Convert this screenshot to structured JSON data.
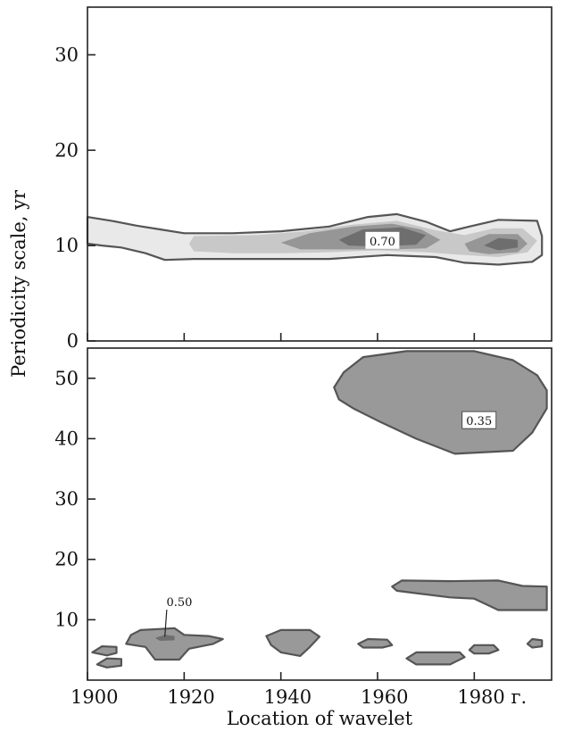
{
  "chart_data": {
    "type": "heatmap",
    "y_axis_title": "Periodicity scale, yr",
    "x_axis_title": "Location of wavelet",
    "x_ticks": [
      1900,
      1920,
      1940,
      1960,
      1980
    ],
    "x_tick_labels": [
      "1900",
      "1920",
      "1940",
      "1960",
      "1980 г."
    ],
    "xlim": [
      1900,
      1996
    ],
    "colors": {
      "outline": "#555555",
      "level_light": "#e9e9e9",
      "level_medium": "#c8c8c8",
      "level_dark": "#969696",
      "level_darkest": "#6e6e6e",
      "patch_fill": "#999999"
    },
    "panels": [
      {
        "name": "top",
        "ylim": [
          0,
          35
        ],
        "y_ticks": [
          0,
          10,
          20,
          30
        ],
        "y_tick_labels": [
          "0",
          "10",
          "20",
          "30"
        ],
        "annotations": [
          {
            "text": "0.70",
            "x": 1961,
            "y": 10.5
          }
        ],
        "contours": [
          {
            "level": "outer",
            "fill": "level_light",
            "stroke": true,
            "points": [
              [
                1900,
                13.0
              ],
              [
                1905,
                12.6
              ],
              [
                1910,
                12.1
              ],
              [
                1915,
                11.7
              ],
              [
                1920,
                11.3
              ],
              [
                1930,
                11.3
              ],
              [
                1940,
                11.5
              ],
              [
                1950,
                12.0
              ],
              [
                1958,
                13.0
              ],
              [
                1964,
                13.3
              ],
              [
                1970,
                12.5
              ],
              [
                1975,
                11.5
              ],
              [
                1979,
                12.0
              ],
              [
                1985,
                12.7
              ],
              [
                1993,
                12.6
              ],
              [
                1994,
                11.0
              ],
              [
                1994,
                9.0
              ],
              [
                1992,
                8.3
              ],
              [
                1985,
                8.0
              ],
              [
                1978,
                8.2
              ],
              [
                1972,
                8.8
              ],
              [
                1962,
                9.0
              ],
              [
                1950,
                8.6
              ],
              [
                1940,
                8.6
              ],
              [
                1930,
                8.6
              ],
              [
                1922,
                8.6
              ],
              [
                1916,
                8.5
              ],
              [
                1912,
                9.2
              ],
              [
                1907,
                9.8
              ],
              [
                1903,
                10.0
              ],
              [
                1900,
                10.2
              ]
            ]
          },
          {
            "level": "light",
            "fill": "level_medium",
            "stroke": false,
            "points": [
              [
                1922,
                11.0
              ],
              [
                1935,
                11.1
              ],
              [
                1945,
                11.5
              ],
              [
                1955,
                12.2
              ],
              [
                1964,
                12.6
              ],
              [
                1972,
                11.6
              ],
              [
                1978,
                11.1
              ],
              [
                1984,
                11.8
              ],
              [
                1990,
                11.8
              ],
              [
                1993,
                10.5
              ],
              [
                1991,
                9.3
              ],
              [
                1985,
                8.8
              ],
              [
                1978,
                9.0
              ],
              [
                1970,
                9.3
              ],
              [
                1960,
                9.5
              ],
              [
                1950,
                9.3
              ],
              [
                1940,
                9.2
              ],
              [
                1930,
                9.2
              ],
              [
                1922,
                9.4
              ],
              [
                1921,
                10.2
              ]
            ]
          },
          {
            "level": "medium",
            "fill": "level_dark",
            "stroke": false,
            "points": [
              [
                1940,
                10.3
              ],
              [
                1946,
                11.3
              ],
              [
                1955,
                12.0
              ],
              [
                1963,
                12.3
              ],
              [
                1969,
                11.7
              ],
              [
                1973,
                10.6
              ],
              [
                1970,
                9.7
              ],
              [
                1963,
                9.6
              ],
              [
                1953,
                9.6
              ],
              [
                1944,
                9.6
              ]
            ]
          },
          {
            "level": "medium",
            "fill": "level_dark",
            "stroke": false,
            "points": [
              [
                1978,
                10.2
              ],
              [
                1983,
                11.2
              ],
              [
                1989,
                11.2
              ],
              [
                1991,
                10.2
              ],
              [
                1989,
                9.3
              ],
              [
                1983,
                9.1
              ],
              [
                1979,
                9.4
              ]
            ]
          },
          {
            "level": "dark",
            "fill": "level_darkest",
            "stroke": false,
            "points": [
              [
                1952,
                10.6
              ],
              [
                1957,
                11.7
              ],
              [
                1965,
                11.9
              ],
              [
                1970,
                11.1
              ],
              [
                1968,
                10.1
              ],
              [
                1960,
                9.9
              ],
              [
                1954,
                10.0
              ]
            ]
          },
          {
            "level": "dark",
            "fill": "level_darkest",
            "stroke": false,
            "points": [
              [
                1982,
                10.0
              ],
              [
                1985,
                10.8
              ],
              [
                1989,
                10.6
              ],
              [
                1989,
                9.8
              ],
              [
                1985,
                9.5
              ]
            ]
          }
        ]
      },
      {
        "name": "bottom",
        "ylim": [
          0,
          55
        ],
        "y_ticks": [
          10,
          20,
          30,
          40,
          50
        ],
        "y_tick_labels": [
          "10",
          "20",
          "30",
          "40",
          "50"
        ],
        "annotations": [
          {
            "text": "0.35",
            "x": 1981,
            "y": 43,
            "boxed": true
          },
          {
            "text": "0.50",
            "x": 1919,
            "y": 13.0,
            "leader_to": [
              1916,
              7.2
            ]
          }
        ],
        "contours": [
          {
            "level": "0.35",
            "fill": "patch_fill",
            "stroke": true,
            "points": [
              [
                1951,
                48.5
              ],
              [
                1953,
                51.0
              ],
              [
                1957,
                53.5
              ],
              [
                1966,
                54.5
              ],
              [
                1980,
                54.5
              ],
              [
                1988,
                53.0
              ],
              [
                1993,
                50.5
              ],
              [
                1995,
                48.0
              ],
              [
                1995,
                45.0
              ],
              [
                1992,
                41.0
              ],
              [
                1988,
                38.0
              ],
              [
                1976,
                37.5
              ],
              [
                1968,
                40.0
              ],
              [
                1960,
                43.0
              ],
              [
                1955,
                45.0
              ],
              [
                1952,
                46.5
              ]
            ]
          },
          {
            "level": "0.35",
            "fill": "patch_fill",
            "stroke": true,
            "points": [
              [
                1963,
                15.5
              ],
              [
                1965,
                16.5
              ],
              [
                1975,
                16.4
              ],
              [
                1985,
                16.5
              ],
              [
                1990,
                15.6
              ],
              [
                1995,
                15.5
              ],
              [
                1995,
                11.6
              ],
              [
                1985,
                11.6
              ],
              [
                1980,
                13.5
              ],
              [
                1975,
                13.7
              ],
              [
                1968,
                14.4
              ],
              [
                1964,
                14.8
              ]
            ]
          },
          {
            "level": "0.35",
            "fill": "patch_fill",
            "stroke": true,
            "points": [
              [
                1909,
                7.5
              ],
              [
                1911,
                8.3
              ],
              [
                1918,
                8.6
              ],
              [
                1920,
                7.5
              ],
              [
                1925,
                7.3
              ],
              [
                1928,
                6.8
              ],
              [
                1926,
                6.0
              ],
              [
                1921,
                5.2
              ],
              [
                1919,
                3.4
              ],
              [
                1914,
                3.4
              ],
              [
                1912,
                5.5
              ],
              [
                1908,
                6.0
              ]
            ]
          },
          {
            "level": "0.35",
            "fill": "patch_fill",
            "stroke": true,
            "points": [
              [
                1937,
                7.3
              ],
              [
                1940,
                8.3
              ],
              [
                1946,
                8.3
              ],
              [
                1948,
                7.2
              ],
              [
                1946,
                5.5
              ],
              [
                1944,
                4.0
              ],
              [
                1940,
                4.6
              ],
              [
                1938,
                5.8
              ]
            ]
          },
          {
            "level": "0.35",
            "fill": "patch_fill",
            "stroke": true,
            "points": [
              [
                1966,
                3.6
              ],
              [
                1968,
                4.6
              ],
              [
                1977,
                4.6
              ],
              [
                1978,
                3.8
              ],
              [
                1975,
                2.6
              ],
              [
                1968,
                2.6
              ]
            ]
          },
          {
            "level": "0.35",
            "fill": "patch_fill",
            "stroke": true,
            "points": [
              [
                1956,
                6.0
              ],
              [
                1958,
                6.8
              ],
              [
                1962,
                6.7
              ],
              [
                1963,
                5.8
              ],
              [
                1961,
                5.4
              ],
              [
                1957,
                5.4
              ]
            ]
          },
          {
            "level": "0.35",
            "fill": "patch_fill",
            "stroke": true,
            "points": [
              [
                1979,
                5.0
              ],
              [
                1980,
                5.8
              ],
              [
                1984,
                5.8
              ],
              [
                1985,
                5.0
              ],
              [
                1983,
                4.4
              ],
              [
                1980,
                4.4
              ]
            ]
          },
          {
            "level": "0.35",
            "fill": "patch_fill",
            "stroke": true,
            "points": [
              [
                1901,
                4.6
              ],
              [
                1903,
                5.6
              ],
              [
                1906,
                5.5
              ],
              [
                1906,
                4.5
              ],
              [
                1904,
                4.1
              ]
            ]
          },
          {
            "level": "0.35",
            "fill": "patch_fill",
            "stroke": true,
            "points": [
              [
                1902,
                2.6
              ],
              [
                1904,
                3.6
              ],
              [
                1907,
                3.5
              ],
              [
                1907,
                2.4
              ],
              [
                1904,
                2.1
              ]
            ]
          },
          {
            "level": "0.35",
            "fill": "patch_fill",
            "stroke": true,
            "points": [
              [
                1991,
                6.0
              ],
              [
                1992,
                6.8
              ],
              [
                1994,
                6.6
              ],
              [
                1994,
                5.6
              ],
              [
                1992,
                5.4
              ]
            ]
          },
          {
            "level": "0.50",
            "fill": "level_darkest",
            "stroke": false,
            "points": [
              [
                1914,
                7.0
              ],
              [
                1916,
                7.5
              ],
              [
                1918,
                7.3
              ],
              [
                1918,
                6.6
              ],
              [
                1915,
                6.5
              ]
            ]
          }
        ]
      }
    ]
  }
}
